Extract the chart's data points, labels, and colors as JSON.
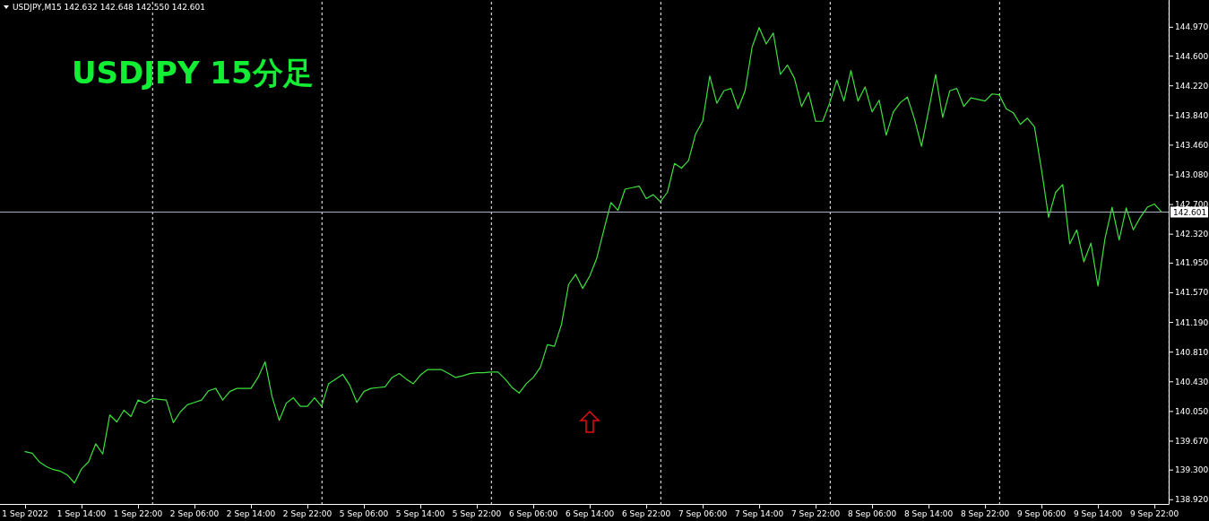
{
  "chart_data": {
    "type": "line",
    "title": "USDJPY 15分足",
    "annotations": [
      "USDJPY,M15  142.632 142.648 142.550 142.601"
    ],
    "color": "#3ee03e",
    "categories": [
      "1 Sep 2022",
      null,
      null,
      null,
      null,
      null,
      null,
      null,
      "1 Sep 14:00",
      null,
      null,
      null,
      null,
      null,
      null,
      null,
      "1 Sep 22:00",
      null,
      null,
      null,
      null,
      null,
      null,
      null,
      "2 Sep 06:00",
      null,
      null,
      null,
      null,
      null,
      null,
      null,
      "2 Sep 14:00",
      null,
      null,
      null,
      null,
      null,
      null,
      null,
      "2 Sep 22:00",
      null,
      null,
      null,
      null,
      null,
      null,
      null,
      "5 Sep 06:00",
      null,
      null,
      null,
      null,
      null,
      null,
      null,
      "5 Sep 14:00",
      null,
      null,
      null,
      null,
      null,
      null,
      null,
      "5 Sep 22:00",
      null,
      null,
      null,
      null,
      null,
      null,
      null,
      "6 Sep 06:00",
      null,
      null,
      null,
      null,
      null,
      null,
      null,
      "6 Sep 14:00",
      null,
      null,
      null,
      null,
      null,
      null,
      null,
      "6 Sep 22:00",
      null,
      null,
      null,
      null,
      null,
      null,
      null,
      "7 Sep 06:00",
      null,
      null,
      null,
      null,
      null,
      null,
      null,
      "7 Sep 14:00",
      null,
      null,
      null,
      null,
      null,
      null,
      null,
      "7 Sep 22:00",
      null,
      null,
      null,
      null,
      null,
      null,
      null,
      "8 Sep 06:00",
      null,
      null,
      null,
      null,
      null,
      null,
      null,
      "8 Sep 14:00",
      null,
      null,
      null,
      null,
      null,
      null,
      null,
      "8 Sep 22:00",
      null,
      null,
      null,
      null,
      null,
      null,
      null,
      "9 Sep 06:00",
      null,
      null,
      null,
      null,
      null,
      null,
      null,
      "9 Sep 14:00",
      null,
      null,
      null,
      null,
      null,
      null,
      null,
      "9 Sep 22:00",
      null
    ],
    "values": [
      139.53,
      139.51,
      139.4,
      139.34,
      139.3,
      139.28,
      139.23,
      139.13,
      139.31,
      139.4,
      139.63,
      139.5,
      140.0,
      139.91,
      140.06,
      139.98,
      140.19,
      140.15,
      140.21,
      140.2,
      140.19,
      139.9,
      140.04,
      140.13,
      140.16,
      140.19,
      140.31,
      140.34,
      140.19,
      140.3,
      140.34,
      140.34,
      140.34,
      140.48,
      140.68,
      140.23,
      139.93,
      140.15,
      140.22,
      140.11,
      140.11,
      140.22,
      140.11,
      140.4,
      140.46,
      140.52,
      140.38,
      140.16,
      140.3,
      140.34,
      140.35,
      140.36,
      140.48,
      140.53,
      140.46,
      140.4,
      140.51,
      140.58,
      140.58,
      140.58,
      140.53,
      140.48,
      140.5,
      140.53,
      140.54,
      140.54,
      140.55,
      140.55,
      140.46,
      140.35,
      140.28,
      140.4,
      140.48,
      140.61,
      140.9,
      140.88,
      141.16,
      141.67,
      141.8,
      141.62,
      141.78,
      142.01,
      142.37,
      142.72,
      142.62,
      142.89,
      142.91,
      142.93,
      142.77,
      142.82,
      142.73,
      142.85,
      143.22,
      143.16,
      143.26,
      143.6,
      143.76,
      144.34,
      143.99,
      144.15,
      144.18,
      143.92,
      144.15,
      144.71,
      144.96,
      144.75,
      144.89,
      144.36,
      144.48,
      144.31,
      143.95,
      144.13,
      143.76,
      143.76,
      144.0,
      144.29,
      144.02,
      144.41,
      144.02,
      144.2,
      143.88,
      144.03,
      143.58,
      143.88,
      144.0,
      144.07,
      143.79,
      143.44,
      143.9,
      144.36,
      143.81,
      144.15,
      144.18,
      143.95,
      144.06,
      144.04,
      144.02,
      144.11,
      144.1,
      143.92,
      143.87,
      143.72,
      143.8,
      143.69,
      143.14,
      142.53,
      142.85,
      142.95,
      142.19,
      142.37,
      141.96,
      142.2,
      141.65,
      142.26,
      142.66,
      142.24,
      142.65,
      142.37,
      142.53,
      142.66,
      142.7,
      142.6
    ],
    "ylim": [
      138.86,
      145.29
    ],
    "yticks": [
      {
        "value": 138.92,
        "label": "138.920"
      },
      {
        "value": 139.3,
        "label": "139.300"
      },
      {
        "value": 139.67,
        "label": "139.670"
      },
      {
        "value": 140.05,
        "label": "140.050"
      },
      {
        "value": 140.43,
        "label": "140.430"
      },
      {
        "value": 140.81,
        "label": "140.810"
      },
      {
        "value": 141.19,
        "label": "141.190"
      },
      {
        "value": 141.57,
        "label": "141.570"
      },
      {
        "value": 141.95,
        "label": "141.950"
      },
      {
        "value": 142.32,
        "label": "142.320"
      },
      {
        "value": 142.7,
        "label": "142.700"
      },
      {
        "value": 143.08,
        "label": "143.080"
      },
      {
        "value": 143.46,
        "label": "143.460"
      },
      {
        "value": 143.84,
        "label": "143.840"
      },
      {
        "value": 144.22,
        "label": "144.220"
      },
      {
        "value": 144.6,
        "label": "144.600"
      },
      {
        "value": 144.97,
        "label": "144.970"
      }
    ],
    "ref_lines": [
      {
        "axis": "y",
        "value": 142.601,
        "label": "142.601",
        "color": "#a8b0c8",
        "line_style": "solid"
      }
    ]
  }
}
